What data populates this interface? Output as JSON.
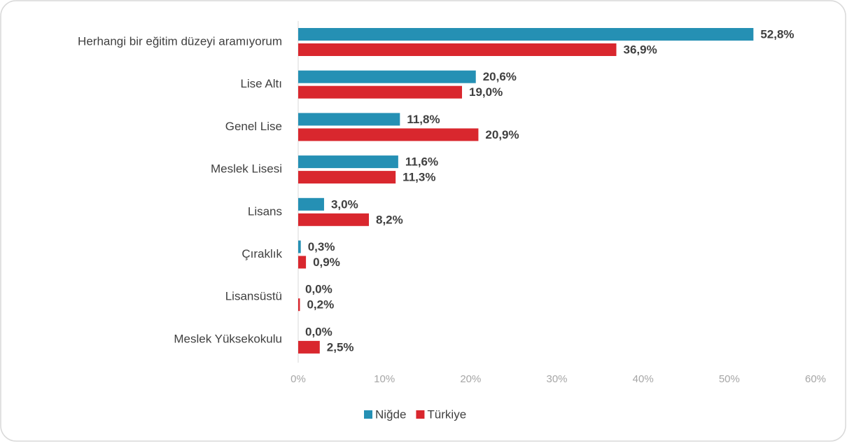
{
  "chart_data": {
    "type": "hbar",
    "categories": [
      "Herhangi bir eğitim düzeyi aramıyorum",
      "Lise Altı",
      "Genel Lise",
      "Meslek Lisesi",
      "Lisans",
      "Çıraklık",
      "Lisansüstü",
      "Meslek Yüksekokulu"
    ],
    "series": [
      {
        "name": "Niğde",
        "color": "#2590b4",
        "values": [
          52.8,
          20.6,
          11.8,
          11.6,
          3.0,
          0.3,
          0.0,
          0.0
        ],
        "value_labels": [
          "52,8%",
          "20,6%",
          "11,8%",
          "11,6%",
          "3,0%",
          "0,3%",
          "0,0%",
          "0,0%"
        ]
      },
      {
        "name": "Türkiye",
        "color": "#d9272e",
        "values": [
          36.9,
          19.0,
          20.9,
          11.3,
          8.2,
          0.9,
          0.2,
          2.5
        ],
        "value_labels": [
          "36,9%",
          "19,0%",
          "20,9%",
          "11,3%",
          "8,2%",
          "0,9%",
          "0,2%",
          "2,5%"
        ]
      }
    ],
    "xlim": [
      0,
      60
    ],
    "xticks": [
      {
        "value": 0,
        "label": "0%"
      },
      {
        "value": 10,
        "label": "10%"
      },
      {
        "value": 20,
        "label": "20%"
      },
      {
        "value": 30,
        "label": "30%"
      },
      {
        "value": 40,
        "label": "40%"
      },
      {
        "value": 50,
        "label": "50%"
      },
      {
        "value": 60,
        "label": "60%"
      }
    ],
    "grid": false,
    "legend": "bottom"
  }
}
